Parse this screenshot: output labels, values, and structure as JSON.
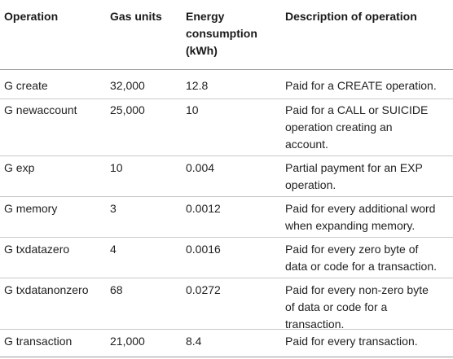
{
  "table": {
    "headers": {
      "operation": "Operation",
      "gas_units": "Gas units",
      "energy": [
        "Energy",
        "consumption",
        "(kWh)"
      ],
      "description": "Description of operation"
    },
    "rows": [
      {
        "operation": "G create",
        "gas_units": "32,000",
        "energy": "12.8",
        "description": [
          "Paid for a CREATE operation."
        ]
      },
      {
        "operation": "G newaccount",
        "gas_units": "25,000",
        "energy": "10",
        "description": [
          "Paid for a CALL or SUICIDE",
          "operation creating an",
          "account."
        ]
      },
      {
        "operation": "G exp",
        "gas_units": "10",
        "energy": "0.004",
        "description": [
          "Partial payment for an EXP",
          "operation."
        ]
      },
      {
        "operation": "G memory",
        "gas_units": "3",
        "energy": "0.0012",
        "description": [
          "Paid for every additional word",
          "when expanding memory."
        ]
      },
      {
        "operation": "G txdatazero",
        "gas_units": "4",
        "energy": "0.0016",
        "description": [
          "Paid for every zero byte of",
          "data or code for a transaction."
        ]
      },
      {
        "operation": "G txdatanonzero",
        "gas_units": "68",
        "energy": "0.0272",
        "description": [
          "Paid for every non-zero byte",
          "of data or code for a",
          "transaction."
        ]
      },
      {
        "operation": "G transaction",
        "gas_units": "21,000",
        "energy": "8.4",
        "description": [
          "Paid for every transaction."
        ]
      }
    ]
  }
}
